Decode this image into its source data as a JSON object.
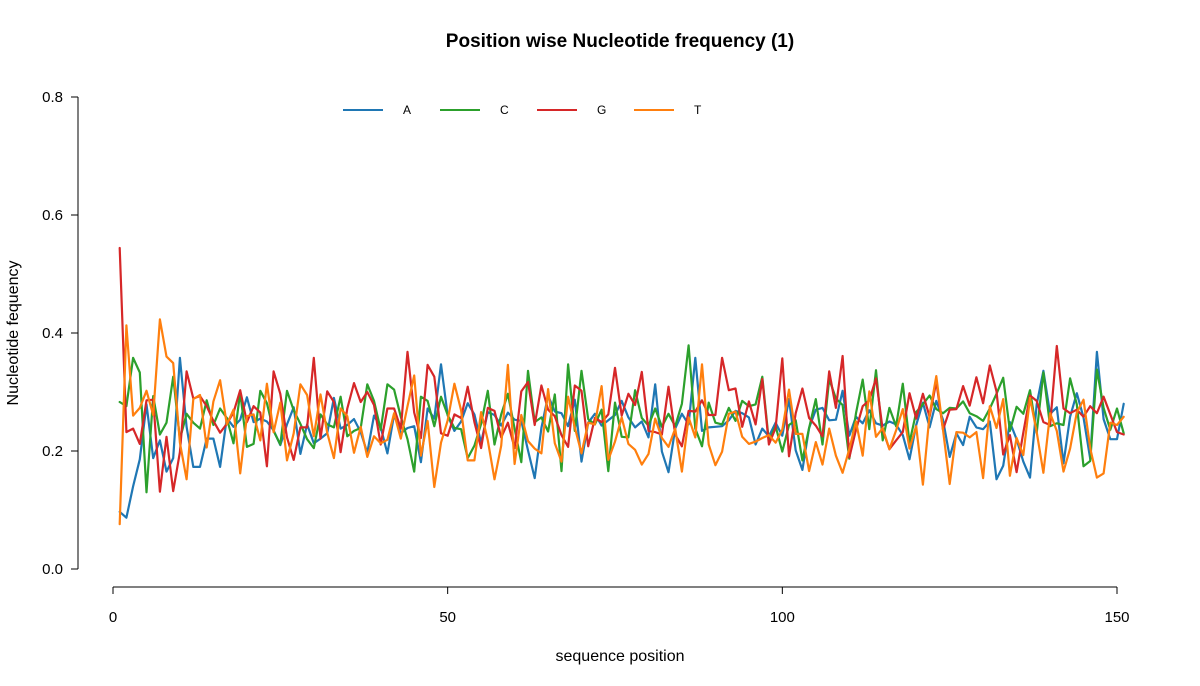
{
  "chart_data": {
    "type": "line",
    "title": "Position wise Nucleotide frequency (1)",
    "xlabel": "sequence position",
    "ylabel": "Nucleotide fequency",
    "xlim": [
      1,
      151
    ],
    "ylim": [
      0,
      0.8
    ],
    "xticks": [
      0,
      50,
      100,
      150
    ],
    "yticks": [
      0.0,
      0.2,
      0.4,
      0.6,
      0.8
    ],
    "ytick_labels": [
      "0.0",
      "0.2",
      "0.4",
      "0.6",
      "0.8"
    ],
    "grid": false,
    "legend_position": "top-center",
    "x": [
      1,
      2,
      3,
      4,
      5,
      6,
      7,
      8,
      9,
      10,
      11,
      12,
      13,
      14,
      15,
      16,
      17,
      18,
      19,
      20,
      21,
      22,
      23,
      24,
      25,
      26,
      27,
      28,
      29,
      30,
      31,
      32,
      33,
      34,
      35,
      36,
      37,
      38,
      39,
      40,
      41,
      42,
      43,
      44,
      45,
      46,
      47,
      48,
      49,
      50,
      51,
      52,
      53,
      54,
      55,
      56,
      57,
      58,
      59,
      60,
      61,
      62,
      63,
      64,
      65,
      66,
      67,
      68,
      69,
      70,
      71,
      72,
      73,
      74,
      75,
      76,
      77,
      78,
      79,
      80,
      81,
      82,
      83,
      84,
      85,
      86,
      87,
      88,
      89,
      90,
      91,
      92,
      93,
      94,
      95,
      96,
      97,
      98,
      99,
      100,
      101,
      102,
      103,
      104,
      105,
      106,
      107,
      108,
      109,
      110,
      111,
      112,
      113,
      114,
      115,
      116,
      117,
      118,
      119,
      120,
      121,
      122,
      123,
      124,
      125,
      126,
      127,
      128,
      129,
      130,
      131,
      132,
      133,
      134,
      135,
      136,
      137,
      138,
      139,
      140,
      141,
      142,
      143,
      144,
      145,
      146,
      147,
      148,
      149,
      150,
      151
    ],
    "series": [
      {
        "name": "A",
        "color": "#1f77b4",
        "values": [
          0.097,
          0.087,
          0.14,
          0.186,
          0.279,
          0.188,
          0.218,
          0.165,
          0.188,
          0.358,
          0.241,
          0.173,
          0.173,
          0.221,
          0.221,
          0.173,
          0.256,
          0.241,
          0.253,
          0.291,
          0.249,
          0.255,
          0.25,
          0.235,
          0.21,
          0.245,
          0.274,
          0.195,
          0.245,
          0.213,
          0.221,
          0.23,
          0.29,
          0.238,
          0.244,
          0.254,
          0.232,
          0.197,
          0.26,
          0.24,
          0.196,
          0.262,
          0.23,
          0.239,
          0.242,
          0.181,
          0.272,
          0.255,
          0.347,
          0.26,
          0.234,
          0.25,
          0.281,
          0.262,
          0.214,
          0.266,
          0.261,
          0.243,
          0.265,
          0.253,
          0.251,
          0.201,
          0.154,
          0.239,
          0.294,
          0.267,
          0.264,
          0.242,
          0.287,
          0.182,
          0.248,
          0.263,
          0.243,
          0.252,
          0.261,
          0.285,
          0.257,
          0.24,
          0.25,
          0.223,
          0.313,
          0.199,
          0.164,
          0.238,
          0.263,
          0.245,
          0.358,
          0.234,
          0.24,
          0.241,
          0.242,
          0.252,
          0.268,
          0.264,
          0.257,
          0.211,
          0.238,
          0.225,
          0.248,
          0.226,
          0.288,
          0.201,
          0.168,
          0.239,
          0.27,
          0.273,
          0.252,
          0.253,
          0.302,
          0.226,
          0.258,
          0.247,
          0.269,
          0.247,
          0.243,
          0.25,
          0.245,
          0.227,
          0.186,
          0.244,
          0.282,
          0.24,
          0.285,
          0.253,
          0.19,
          0.23,
          0.21,
          0.258,
          0.24,
          0.237,
          0.25,
          0.152,
          0.175,
          0.249,
          0.22,
          0.182,
          0.155,
          0.279,
          0.336,
          0.263,
          0.274,
          0.179,
          0.258,
          0.298,
          0.257,
          0.187,
          0.368,
          0.254,
          0.22,
          0.22,
          0.28
        ],
        "_note_unused": null
      }
    ]
  },
  "legend": [
    {
      "name": "A",
      "color": "#1f77b4"
    },
    {
      "name": "C",
      "color": "#2ca02c"
    },
    {
      "name": "G",
      "color": "#d62728"
    },
    {
      "name": "T",
      "color": "#ff7f0e"
    }
  ]
}
